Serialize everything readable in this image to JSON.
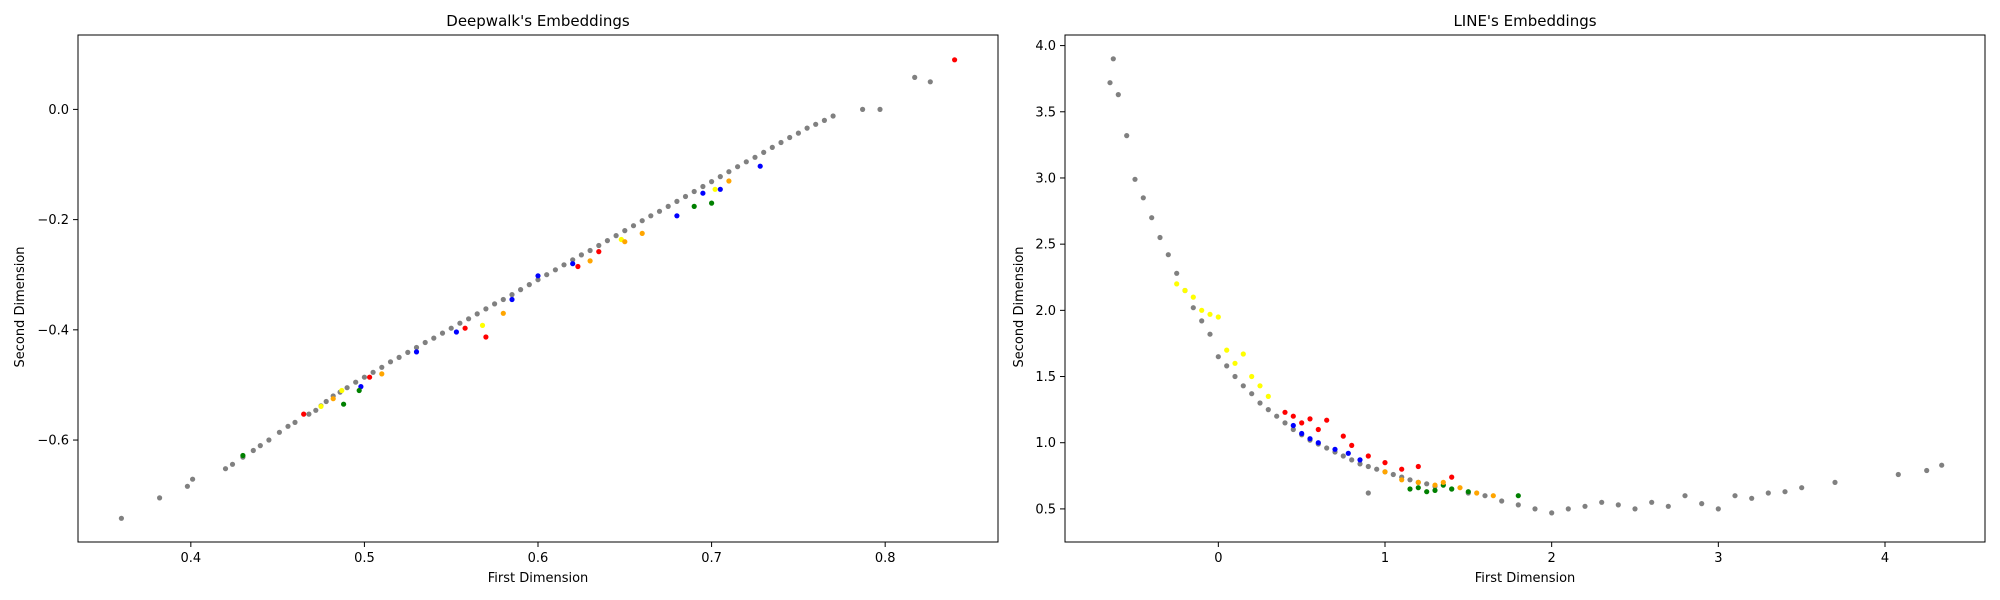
{
  "colors": {
    "gray": "#808080",
    "red": "#ff0000",
    "blue": "#0000ff",
    "green": "#008000",
    "yellow": "#ffff00",
    "orange": "#ffa500"
  },
  "chart_data": [
    {
      "type": "scatter",
      "title": "Deepwalk's Embeddings",
      "xlabel": "First Dimension",
      "ylabel": "Second Dimension",
      "xlim": [
        0.335,
        0.865
      ],
      "ylim": [
        -0.785,
        0.135
      ],
      "xticks": [
        0.4,
        0.5,
        0.6,
        0.7,
        0.8
      ],
      "xtick_labels": [
        "0.4",
        "0.5",
        "0.6",
        "0.7",
        "0.8"
      ],
      "yticks": [
        -0.6,
        -0.4,
        -0.2,
        0.0
      ],
      "ytick_labels": [
        "−0.6",
        "−0.4",
        "−0.2",
        "0.0"
      ],
      "grid": false,
      "series": [
        {
          "color": "#808080",
          "x": [
            0.36,
            0.382,
            0.398,
            0.401,
            0.42,
            0.424,
            0.43,
            0.436,
            0.44,
            0.445,
            0.451,
            0.456,
            0.46,
            0.468,
            0.472,
            0.475,
            0.478,
            0.482,
            0.486,
            0.49,
            0.495,
            0.5,
            0.505,
            0.51,
            0.515,
            0.52,
            0.525,
            0.53,
            0.535,
            0.54,
            0.545,
            0.55,
            0.555,
            0.56,
            0.565,
            0.57,
            0.575,
            0.58,
            0.585,
            0.59,
            0.595,
            0.6,
            0.605,
            0.61,
            0.615,
            0.62,
            0.625,
            0.63,
            0.635,
            0.64,
            0.645,
            0.65,
            0.655,
            0.66,
            0.665,
            0.67,
            0.675,
            0.68,
            0.685,
            0.69,
            0.695,
            0.7,
            0.705,
            0.71,
            0.715,
            0.72,
            0.725,
            0.73,
            0.735,
            0.74,
            0.745,
            0.75,
            0.755,
            0.76,
            0.765,
            0.77,
            0.787,
            0.797,
            0.817,
            0.826
          ],
          "y": [
            -0.742,
            -0.705,
            -0.684,
            -0.671,
            -0.652,
            -0.644,
            -0.631,
            -0.619,
            -0.61,
            -0.6,
            -0.586,
            -0.575,
            -0.568,
            -0.553,
            -0.546,
            -0.538,
            -0.53,
            -0.52,
            -0.513,
            -0.505,
            -0.495,
            -0.486,
            -0.477,
            -0.468,
            -0.458,
            -0.45,
            -0.441,
            -0.432,
            -0.423,
            -0.415,
            -0.406,
            -0.397,
            -0.388,
            -0.38,
            -0.371,
            -0.362,
            -0.353,
            -0.345,
            -0.336,
            -0.327,
            -0.318,
            -0.309,
            -0.3,
            -0.291,
            -0.282,
            -0.273,
            -0.264,
            -0.256,
            -0.247,
            -0.238,
            -0.229,
            -0.22,
            -0.211,
            -0.202,
            -0.193,
            -0.185,
            -0.176,
            -0.167,
            -0.158,
            -0.149,
            -0.14,
            -0.131,
            -0.122,
            -0.113,
            -0.104,
            -0.095,
            -0.087,
            -0.078,
            -0.069,
            -0.06,
            -0.051,
            -0.043,
            -0.034,
            -0.027,
            -0.02,
            -0.012,
            0.0,
            0.0,
            0.058,
            0.05
          ]
        },
        {
          "color": "#ff0000",
          "x": [
            0.465,
            0.503,
            0.558,
            0.57,
            0.623,
            0.635,
            0.84
          ],
          "y": [
            -0.553,
            -0.486,
            -0.397,
            -0.413,
            -0.285,
            -0.258,
            0.09
          ]
        },
        {
          "color": "#0000ff",
          "x": [
            0.498,
            0.53,
            0.553,
            0.585,
            0.6,
            0.62,
            0.68,
            0.695,
            0.705,
            0.728
          ],
          "y": [
            -0.503,
            -0.44,
            -0.404,
            -0.345,
            -0.302,
            -0.28,
            -0.193,
            -0.152,
            -0.145,
            -0.103
          ]
        },
        {
          "color": "#008000",
          "x": [
            0.43,
            0.488,
            0.497,
            0.69,
            0.7
          ],
          "y": [
            -0.628,
            -0.535,
            -0.51,
            -0.176,
            -0.17
          ]
        },
        {
          "color": "#ffff00",
          "x": [
            0.475,
            0.487,
            0.568,
            0.648,
            0.702
          ],
          "y": [
            -0.539,
            -0.51,
            -0.392,
            -0.236,
            -0.145
          ]
        },
        {
          "color": "#ffa500",
          "x": [
            0.482,
            0.51,
            0.58,
            0.63,
            0.65,
            0.66,
            0.71
          ],
          "y": [
            -0.525,
            -0.48,
            -0.37,
            -0.275,
            -0.24,
            -0.225,
            -0.13
          ]
        }
      ]
    },
    {
      "type": "scatter",
      "title": "LINE's Embeddings",
      "xlabel": "First Dimension",
      "ylabel": "Second Dimension",
      "xlim": [
        -0.92,
        4.6
      ],
      "ylim": [
        0.25,
        4.08
      ],
      "xticks": [
        0,
        1,
        2,
        3,
        4
      ],
      "xtick_labels": [
        "0",
        "1",
        "2",
        "3",
        "4"
      ],
      "yticks": [
        0.5,
        1.0,
        1.5,
        2.0,
        2.5,
        3.0,
        3.5,
        4.0
      ],
      "ytick_labels": [
        "0.5",
        "1.0",
        "1.5",
        "2.0",
        "2.5",
        "3.0",
        "3.5",
        "4.0"
      ],
      "grid": false,
      "series": [
        {
          "color": "#808080",
          "x": [
            -0.63,
            -0.65,
            -0.6,
            -0.55,
            -0.5,
            -0.45,
            -0.4,
            -0.35,
            -0.3,
            -0.25,
            -0.2,
            -0.15,
            -0.1,
            -0.05,
            0.0,
            0.05,
            0.1,
            0.15,
            0.2,
            0.25,
            0.3,
            0.35,
            0.4,
            0.45,
            0.5,
            0.55,
            0.6,
            0.65,
            0.7,
            0.75,
            0.8,
            0.85,
            0.9,
            0.95,
            1.0,
            1.05,
            1.1,
            1.15,
            1.2,
            1.25,
            1.3,
            1.4,
            1.5,
            1.6,
            1.7,
            1.8,
            1.9,
            2.0,
            2.1,
            2.2,
            2.3,
            2.4,
            2.5,
            2.6,
            2.7,
            2.8,
            2.9,
            3.0,
            3.1,
            3.2,
            3.3,
            3.4,
            3.5,
            3.7,
            4.08,
            4.25,
            4.34,
            0.9
          ],
          "y": [
            3.9,
            3.72,
            3.63,
            3.32,
            2.99,
            2.85,
            2.7,
            2.55,
            2.42,
            2.28,
            2.15,
            2.02,
            1.92,
            1.82,
            1.65,
            1.58,
            1.5,
            1.43,
            1.37,
            1.3,
            1.25,
            1.2,
            1.15,
            1.1,
            1.06,
            1.02,
            0.99,
            0.96,
            0.93,
            0.9,
            0.87,
            0.84,
            0.82,
            0.8,
            0.78,
            0.76,
            0.74,
            0.72,
            0.7,
            0.69,
            0.67,
            0.65,
            0.62,
            0.6,
            0.56,
            0.53,
            0.5,
            0.47,
            0.5,
            0.52,
            0.55,
            0.53,
            0.5,
            0.55,
            0.52,
            0.6,
            0.54,
            0.5,
            0.6,
            0.58,
            0.62,
            0.63,
            0.66,
            0.7,
            0.76,
            0.79,
            0.83,
            0.62
          ]
        },
        {
          "color": "#ff0000",
          "x": [
            0.4,
            0.45,
            0.5,
            0.55,
            0.6,
            0.65,
            0.75,
            0.8,
            0.9,
            1.0,
            1.1,
            1.2,
            1.4
          ],
          "y": [
            1.23,
            1.2,
            1.15,
            1.18,
            1.1,
            1.17,
            1.05,
            0.98,
            0.9,
            0.85,
            0.8,
            0.82,
            0.74
          ]
        },
        {
          "color": "#0000ff",
          "x": [
            0.45,
            0.5,
            0.55,
            0.6,
            0.7,
            0.78,
            0.85
          ],
          "y": [
            1.13,
            1.07,
            1.03,
            1.0,
            0.95,
            0.92,
            0.87
          ]
        },
        {
          "color": "#008000",
          "x": [
            1.15,
            1.2,
            1.25,
            1.3,
            1.35,
            1.4,
            1.5,
            1.8
          ],
          "y": [
            0.65,
            0.66,
            0.63,
            0.64,
            0.68,
            0.65,
            0.63,
            0.6
          ]
        },
        {
          "color": "#ffff00",
          "x": [
            -0.25,
            -0.2,
            -0.15,
            -0.1,
            -0.05,
            0.0,
            0.05,
            0.1,
            0.15,
            0.2,
            0.25,
            0.3
          ],
          "y": [
            2.2,
            2.15,
            2.1,
            2.0,
            1.97,
            1.95,
            1.7,
            1.6,
            1.67,
            1.5,
            1.43,
            1.35
          ]
        },
        {
          "color": "#ffa500",
          "x": [
            1.0,
            1.1,
            1.2,
            1.3,
            1.35,
            1.45,
            1.55,
            1.65
          ],
          "y": [
            0.78,
            0.72,
            0.7,
            0.68,
            0.7,
            0.66,
            0.62,
            0.6
          ]
        }
      ]
    }
  ]
}
